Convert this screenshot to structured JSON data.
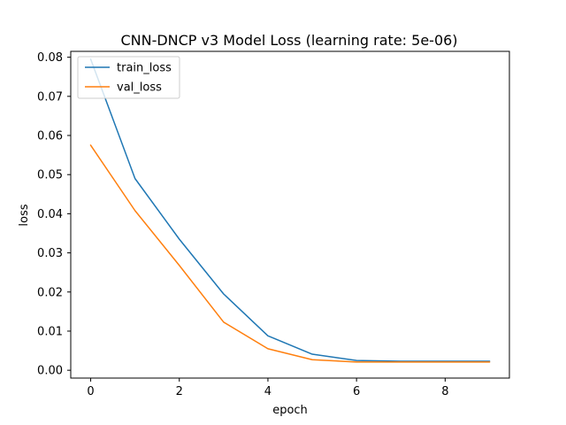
{
  "chart_data": {
    "type": "line",
    "title": "CNN-DNCP v3 Model Loss (learning rate: 5e-06)",
    "xlabel": "epoch",
    "ylabel": "loss",
    "xlim": [
      -0.45,
      9.45
    ],
    "ylim": [
      -0.002,
      0.0815
    ],
    "xticks": [
      0,
      2,
      4,
      6,
      8
    ],
    "yticks": [
      0.0,
      0.01,
      0.02,
      0.03,
      0.04,
      0.05,
      0.06,
      0.07,
      0.08
    ],
    "x": [
      0,
      1,
      2,
      3,
      4,
      5,
      6,
      7,
      8,
      9
    ],
    "series": [
      {
        "name": "train_loss",
        "color": "#1f77b4",
        "values": [
          0.0795,
          0.049,
          0.0335,
          0.0195,
          0.0088,
          0.0041,
          0.0025,
          0.0023,
          0.0023,
          0.0023
        ]
      },
      {
        "name": "val_loss",
        "color": "#ff7f0e",
        "values": [
          0.0575,
          0.0408,
          0.0268,
          0.0123,
          0.0055,
          0.0027,
          0.0021,
          0.0021,
          0.0021,
          0.0021
        ]
      }
    ],
    "grid": false,
    "legend_position": "top-left"
  }
}
